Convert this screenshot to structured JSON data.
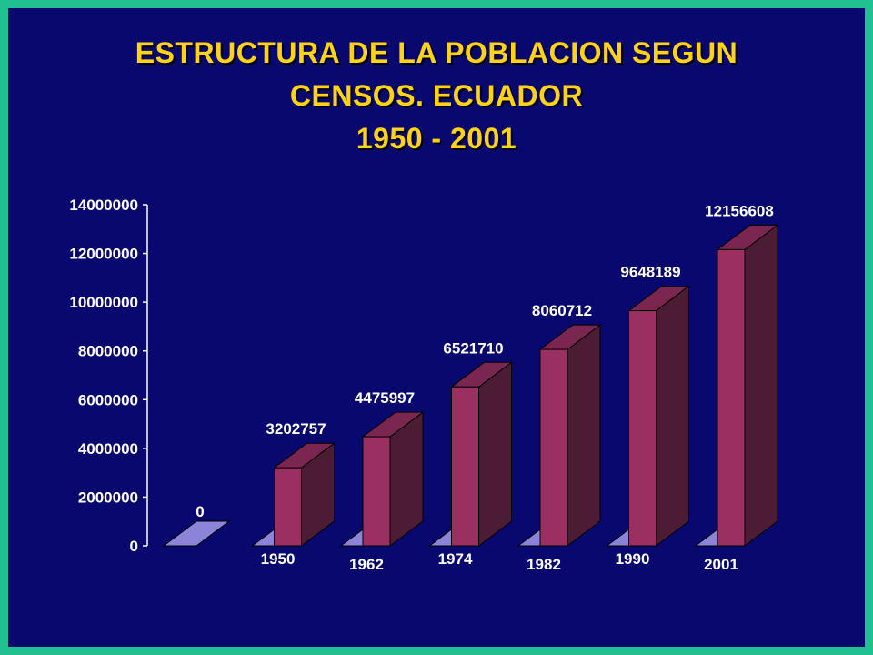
{
  "title_lines": [
    "ESTRUCTURA DE LA POBLACION SEGUN",
    "CENSOS. ECUADOR",
    "1950 - 2001"
  ],
  "colors": {
    "background": "#08086e",
    "border": "#20c090",
    "title": "#ffd21a",
    "bar_front": "#9a2f62",
    "bar_side": "#4c1c34",
    "bar_top": "#7a2650",
    "floor": "#8c84d8"
  },
  "chart_data": {
    "type": "bar",
    "title": "ESTRUCTURA DE LA POBLACION SEGUN CENSOS. ECUADOR 1950 - 2001",
    "categories": [
      "",
      "1950",
      "1962",
      "1974",
      "1982",
      "1990",
      "2001"
    ],
    "values": [
      0,
      3202757,
      4475997,
      6521710,
      8060712,
      9648189,
      12156608
    ],
    "value_labels": [
      "0",
      "3202757",
      "4475997",
      "6521710",
      "8060712",
      "9648189",
      "12156608"
    ],
    "y_ticks": [
      "0",
      "2000000",
      "4000000",
      "6000000",
      "8000000",
      "10000000",
      "12000000",
      "14000000"
    ],
    "ylim": [
      0,
      14000000
    ],
    "xlabel": "",
    "ylabel": "",
    "grid": false,
    "style": "3d-column"
  }
}
